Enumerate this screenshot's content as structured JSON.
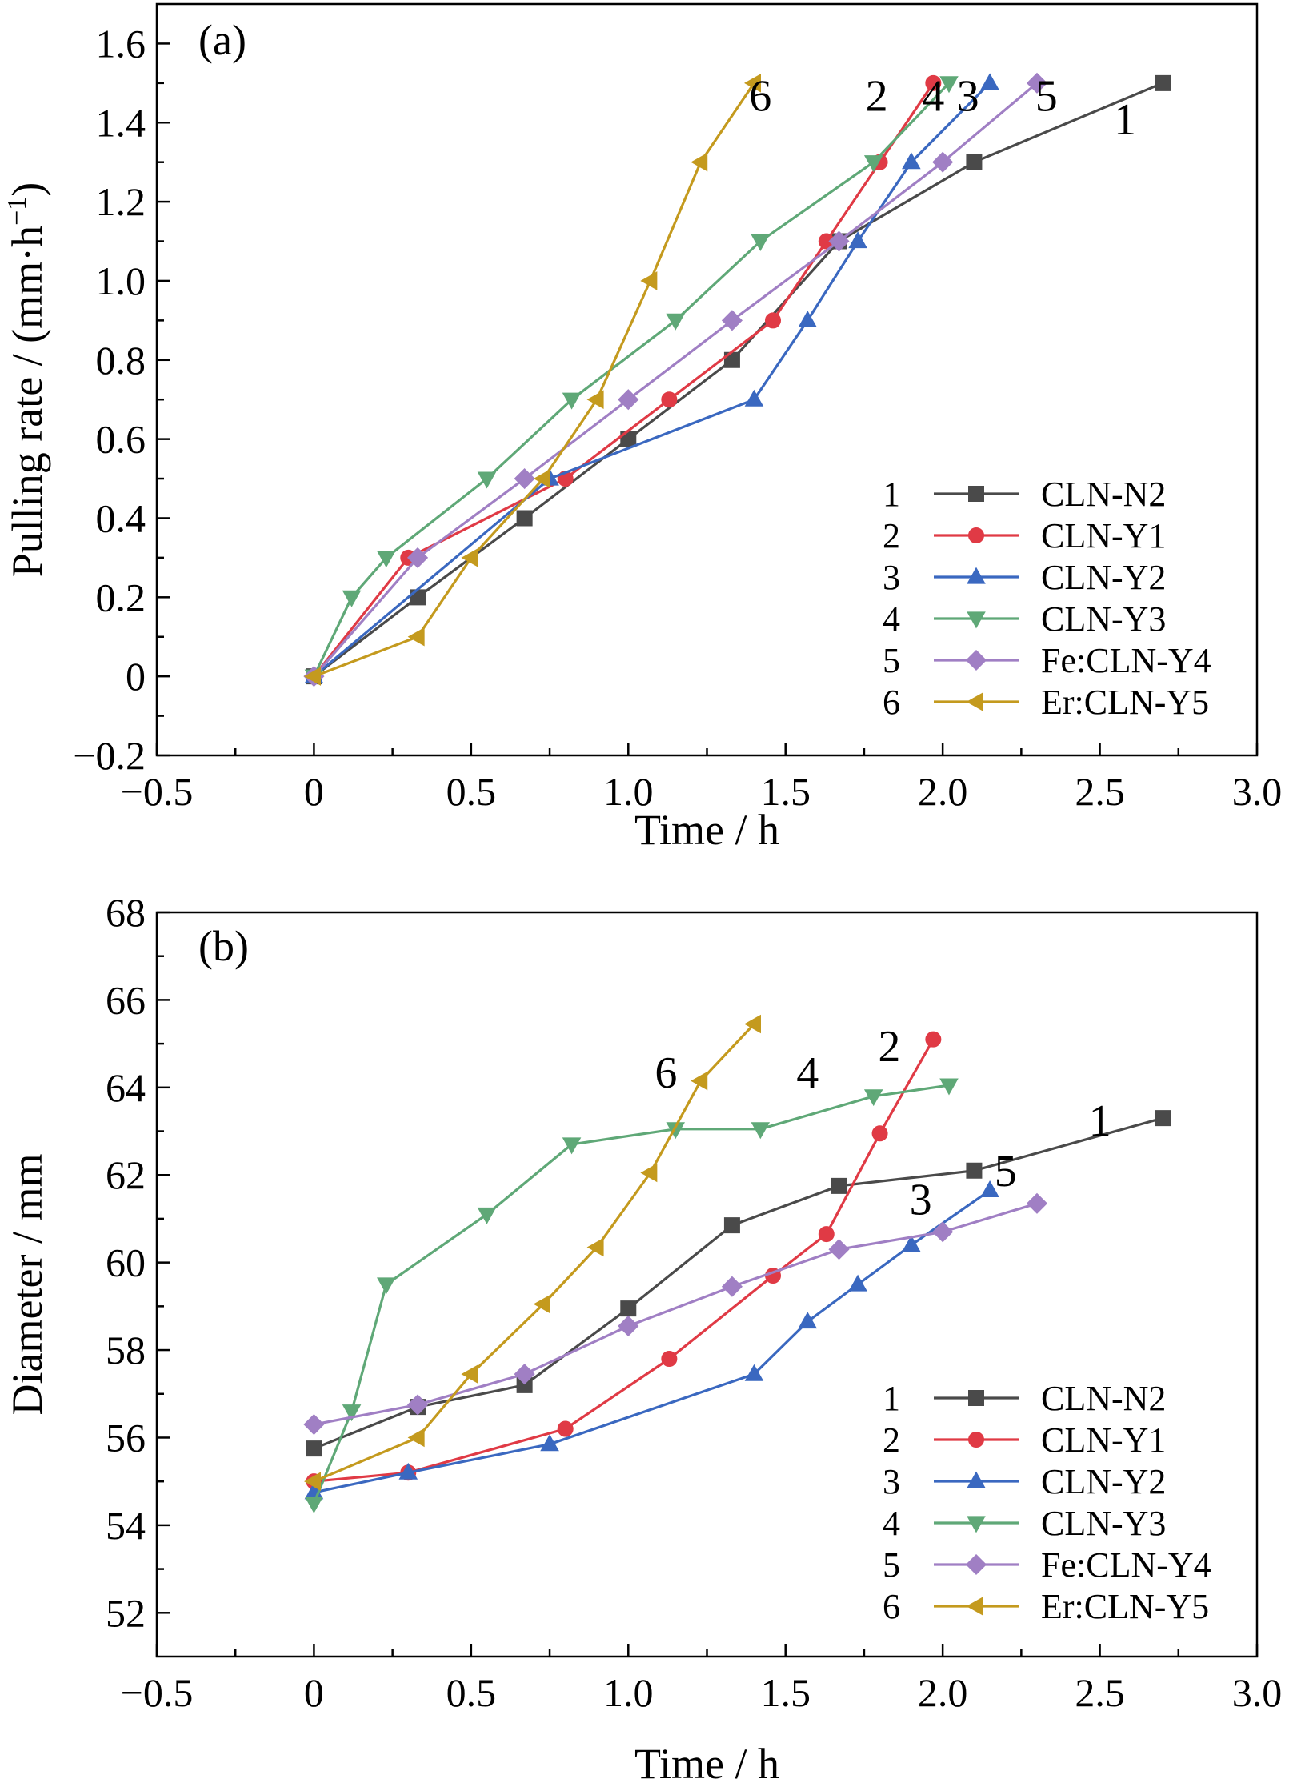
{
  "chart_data": [
    {
      "type": "line",
      "panel_label": "(a)",
      "xlabel": "Time / h",
      "ylabel": "Pulling rate / (mm·h⁻¹)",
      "ylabel_parts": [
        "Pulling rate / (mm·h",
        "−1",
        ")"
      ],
      "xlim": [
        -0.5,
        3.0
      ],
      "ylim": [
        -0.2,
        1.7
      ],
      "x_ticks": [
        -0.5,
        0,
        0.5,
        1.0,
        1.5,
        2.0,
        2.5,
        3.0
      ],
      "x_tick_labels": [
        "−0.5",
        "0",
        "0.5",
        "1.0",
        "1.5",
        "2.0",
        "2.5",
        "3.0"
      ],
      "y_ticks": [
        -0.2,
        0,
        0.2,
        0.4,
        0.6,
        0.8,
        1.0,
        1.2,
        1.4,
        1.6
      ],
      "y_tick_labels": [
        "−0.2",
        "0",
        "0.2",
        "0.4",
        "0.6",
        "0.8",
        "1.0",
        "1.2",
        "1.4",
        "1.6"
      ],
      "grid": false,
      "legend_position": "lower-right",
      "series": [
        {
          "number": "1",
          "name": "CLN-N2",
          "color": "#4a4a4a",
          "marker": "square",
          "x": [
            0,
            0.33,
            0.67,
            1.0,
            1.33,
            1.67,
            2.1,
            2.7
          ],
          "y": [
            0,
            0.2,
            0.4,
            0.6,
            0.8,
            1.1,
            1.3,
            1.5
          ]
        },
        {
          "number": "2",
          "name": "CLN-Y1",
          "color": "#e03a45",
          "marker": "circle",
          "x": [
            0,
            0.3,
            0.8,
            1.13,
            1.46,
            1.63,
            1.8,
            1.97
          ],
          "y": [
            0,
            0.3,
            0.5,
            0.7,
            0.9,
            1.1,
            1.3,
            1.5
          ]
        },
        {
          "number": "3",
          "name": "CLN-Y2",
          "color": "#3a68c0",
          "marker": "triangle-up",
          "x": [
            0,
            0.75,
            1.4,
            1.57,
            1.73,
            1.9,
            2.15
          ],
          "y": [
            0,
            0.5,
            0.7,
            0.9,
            1.1,
            1.3,
            1.5
          ]
        },
        {
          "number": "4",
          "name": "CLN-Y3",
          "color": "#5fa877",
          "marker": "triangle-down",
          "x": [
            0,
            0.12,
            0.23,
            0.55,
            0.82,
            1.15,
            1.42,
            1.78,
            2.02
          ],
          "y": [
            0,
            0.2,
            0.3,
            0.5,
            0.7,
            0.9,
            1.1,
            1.3,
            1.5
          ]
        },
        {
          "number": "5",
          "name": "Fe:CLN-Y4",
          "color": "#a07fc4",
          "marker": "diamond",
          "x": [
            0,
            0.33,
            0.67,
            1.0,
            1.33,
            1.67,
            2.0,
            2.3
          ],
          "y": [
            0,
            0.3,
            0.5,
            0.7,
            0.9,
            1.1,
            1.3,
            1.5
          ]
        },
        {
          "number": "6",
          "name": "Er:CLN-Y5",
          "color": "#c49a1e",
          "marker": "triangle-left",
          "x": [
            0,
            0.33,
            0.5,
            0.73,
            0.9,
            1.07,
            1.23,
            1.4
          ],
          "y": [
            0,
            0.1,
            0.3,
            0.5,
            0.7,
            1.0,
            1.3,
            1.5
          ]
        }
      ],
      "curve_labels": [
        {
          "text": "6",
          "x": 1.42,
          "y": 1.43
        },
        {
          "text": "2",
          "x": 1.79,
          "y": 1.43
        },
        {
          "text": "4",
          "x": 1.97,
          "y": 1.43
        },
        {
          "text": "3",
          "x": 2.08,
          "y": 1.43
        },
        {
          "text": "5",
          "x": 2.33,
          "y": 1.43
        },
        {
          "text": "1",
          "x": 2.58,
          "y": 1.37
        }
      ]
    },
    {
      "type": "line",
      "panel_label": "(b)",
      "xlabel": "Time / h",
      "ylabel": "Diameter / mm",
      "xlim": [
        -0.5,
        3.0
      ],
      "ylim": [
        51,
        68
      ],
      "x_ticks": [
        -0.5,
        0,
        0.5,
        1.0,
        1.5,
        2.0,
        2.5,
        3.0
      ],
      "x_tick_labels": [
        "−0.5",
        "0",
        "0.5",
        "1.0",
        "1.5",
        "2.0",
        "2.5",
        "3.0"
      ],
      "y_ticks": [
        52,
        54,
        56,
        58,
        60,
        62,
        64,
        66,
        68
      ],
      "y_tick_labels": [
        "52",
        "54",
        "56",
        "58",
        "60",
        "62",
        "64",
        "66",
        "68"
      ],
      "grid": false,
      "legend_position": "lower-right",
      "series": [
        {
          "number": "1",
          "name": "CLN-N2",
          "color": "#4a4a4a",
          "marker": "square",
          "x": [
            0,
            0.33,
            0.67,
            1.0,
            1.33,
            1.67,
            2.1,
            2.7
          ],
          "y": [
            55.75,
            56.7,
            57.2,
            58.95,
            60.85,
            61.75,
            62.1,
            63.3
          ]
        },
        {
          "number": "2",
          "name": "CLN-Y1",
          "color": "#e03a45",
          "marker": "circle",
          "x": [
            0,
            0.3,
            0.8,
            1.13,
            1.46,
            1.63,
            1.8,
            1.97
          ],
          "y": [
            55.0,
            55.2,
            56.2,
            57.8,
            59.7,
            60.65,
            62.95,
            65.1
          ]
        },
        {
          "number": "3",
          "name": "CLN-Y2",
          "color": "#3a68c0",
          "marker": "triangle-up",
          "x": [
            0,
            0.3,
            0.75,
            1.4,
            1.57,
            1.73,
            1.9,
            2.15
          ],
          "y": [
            54.75,
            55.2,
            55.85,
            57.45,
            58.65,
            59.5,
            60.4,
            61.65
          ]
        },
        {
          "number": "4",
          "name": "CLN-Y3",
          "color": "#5fa877",
          "marker": "triangle-down",
          "x": [
            0,
            0.12,
            0.23,
            0.55,
            0.82,
            1.15,
            1.42,
            1.78,
            2.02
          ],
          "y": [
            54.5,
            56.6,
            59.5,
            61.1,
            62.7,
            63.05,
            63.05,
            63.8,
            64.05
          ]
        },
        {
          "number": "5",
          "name": "Fe:CLN-Y4",
          "color": "#a07fc4",
          "marker": "diamond",
          "x": [
            0,
            0.33,
            0.67,
            1.0,
            1.33,
            1.67,
            2.0,
            2.3
          ],
          "y": [
            56.3,
            56.75,
            57.45,
            58.55,
            59.45,
            60.3,
            60.7,
            61.35
          ]
        },
        {
          "number": "6",
          "name": "Er:CLN-Y5",
          "color": "#c49a1e",
          "marker": "triangle-left",
          "x": [
            0,
            0.33,
            0.5,
            0.73,
            0.9,
            1.07,
            1.23,
            1.4
          ],
          "y": [
            55.0,
            56.0,
            57.45,
            59.05,
            60.35,
            62.05,
            64.15,
            65.45
          ]
        }
      ],
      "curve_labels": [
        {
          "text": "6",
          "x": 1.12,
          "y": 64.0
        },
        {
          "text": "4",
          "x": 1.57,
          "y": 64.0
        },
        {
          "text": "2",
          "x": 1.83,
          "y": 64.6
        },
        {
          "text": "1",
          "x": 2.5,
          "y": 62.9
        },
        {
          "text": "3",
          "x": 1.93,
          "y": 61.1
        },
        {
          "text": "5",
          "x": 2.2,
          "y": 61.75
        }
      ]
    }
  ]
}
